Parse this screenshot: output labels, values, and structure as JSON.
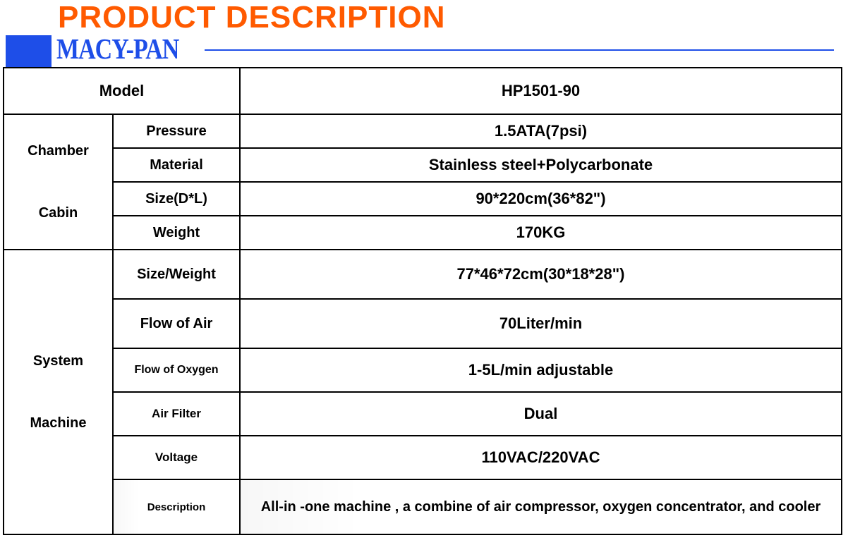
{
  "header": {
    "title": "PRODUCT DESCRIPTION",
    "brand": "MACY-PAN"
  },
  "colors": {
    "accent_orange": "#ff5a00",
    "accent_blue": "#1e4ee8",
    "border": "#000000",
    "text": "#000000",
    "background": "#ffffff"
  },
  "table": {
    "model_label": "Model",
    "model_value": "HP1501-90",
    "chamber": {
      "category_label": "Chamber Cabin",
      "rows": [
        {
          "label": "Pressure",
          "value": "1.5ATA(7psi)"
        },
        {
          "label": "Material",
          "value": "Stainless steel+Polycarbonate"
        },
        {
          "label": "Size(D*L)",
          "value": "90*220cm(36*82\")"
        },
        {
          "label": "Weight",
          "value": "170KG"
        }
      ]
    },
    "system": {
      "category_label": "System Machine",
      "rows": [
        {
          "label": "Size/Weight",
          "value": "77*46*72cm(30*18*28\")"
        },
        {
          "label": "Flow of Air",
          "value": "70Liter/min"
        },
        {
          "label": "Flow of Oxygen",
          "value": "1-5L/min adjustable"
        },
        {
          "label": "Air Filter",
          "value": "Dual"
        },
        {
          "label": "Voltage",
          "value": "110VAC/220VAC"
        },
        {
          "label": "Description",
          "value": "All-in -one machine , a combine of air compressor, oxygen concentrator, and cooler"
        }
      ]
    }
  }
}
